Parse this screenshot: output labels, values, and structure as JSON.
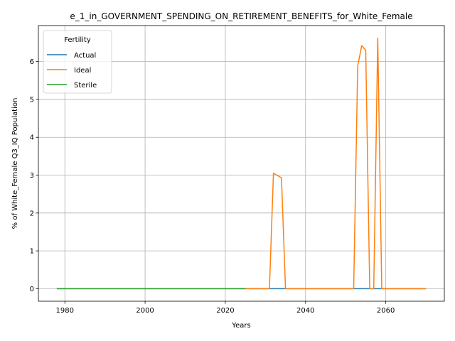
{
  "chart_data": {
    "type": "line",
    "title": "e_1_in_GOVERNMENT_SPENDING_ON_RETIREMENT_BENEFITS_for_White_Female",
    "xlabel": "Years",
    "ylabel": "% of White_Female Q3_IQ Population",
    "xlim": [
      1973.4,
      2074.6
    ],
    "ylim": [
      -0.33,
      6.95
    ],
    "xticks": [
      1980,
      2000,
      2020,
      2040,
      2060
    ],
    "yticks": [
      0,
      1,
      2,
      3,
      4,
      5,
      6
    ],
    "grid": true,
    "legend": {
      "title": "Fertility",
      "placement": "top-left"
    },
    "series": [
      {
        "name": "Actual",
        "color": "#1f77b4",
        "x": [
          1978,
          2070
        ],
        "y": [
          0,
          0
        ]
      },
      {
        "name": "Ideal",
        "color": "#ff7f0e",
        "x": [
          2025,
          2031,
          2032,
          2034,
          2035,
          2052,
          2053,
          2054,
          2055,
          2056,
          2057,
          2058,
          2059,
          2070
        ],
        "y": [
          0,
          0,
          3.05,
          2.93,
          0,
          0,
          5.88,
          6.42,
          6.3,
          0,
          0,
          6.62,
          0,
          0
        ]
      },
      {
        "name": "Sterile",
        "color": "#2ca02c",
        "x": [
          1978,
          2025
        ],
        "y": [
          0,
          0
        ]
      }
    ]
  }
}
